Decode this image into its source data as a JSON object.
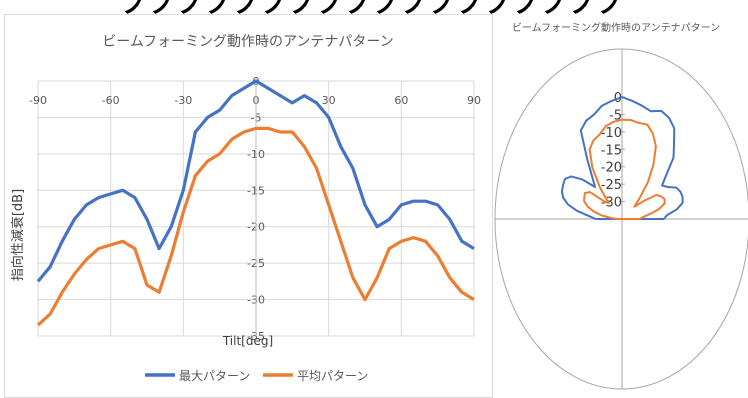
{
  "banner": "ノノノノノノノノノノノノノノノノノノ",
  "chart_data": [
    {
      "type": "line",
      "title": "ビームフォーミング動作時のアンテナパターン",
      "xlabel": "Tilt[deg]",
      "ylabel": "指向性減衰[dB]",
      "xlim": [
        -90,
        90
      ],
      "ylim": [
        -35,
        0
      ],
      "xticks": [
        -90,
        -60,
        -30,
        0,
        30,
        60,
        90
      ],
      "xtick_labels": [
        "-90",
        "-60",
        "-30",
        "0",
        "30",
        "60",
        "90"
      ],
      "yticks": [
        0,
        -5,
        -10,
        -15,
        -20,
        -25,
        -30,
        -35
      ],
      "ytick_labels": [
        "0",
        "-5",
        "-10",
        "-15",
        "-20",
        "-25",
        "-30",
        "-35"
      ],
      "grid": true,
      "legend": "bottom",
      "x": [
        -90,
        -85,
        -80,
        -75,
        -70,
        -65,
        -60,
        -55,
        -50,
        -45,
        -40,
        -35,
        -30,
        -25,
        -20,
        -15,
        -10,
        -5,
        0,
        5,
        10,
        15,
        20,
        25,
        30,
        35,
        40,
        45,
        50,
        55,
        60,
        65,
        70,
        75,
        80,
        85,
        90
      ],
      "series": [
        {
          "name": "最大パターン",
          "color": "#4472c4",
          "values": [
            -27.5,
            -25.5,
            -22,
            -19,
            -17,
            -16,
            -15.5,
            -15,
            -16,
            -19,
            -23,
            -20,
            -15,
            -7,
            -5,
            -4,
            -2,
            -1,
            0,
            -1,
            -2,
            -3,
            -2,
            -3,
            -5,
            -9,
            -12,
            -17,
            -20,
            -19,
            -17,
            -16.5,
            -16.5,
            -17,
            -19,
            -22,
            -23
          ]
        },
        {
          "name": "平均パターン",
          "color": "#ed7d31",
          "values": [
            -33.5,
            -32,
            -29,
            -26.5,
            -24.5,
            -23,
            -22.5,
            -22,
            -23,
            -28,
            -29,
            -24,
            -18,
            -13,
            -11,
            -10,
            -8,
            -7,
            -6.5,
            -6.5,
            -7,
            -7,
            -9,
            -12,
            -17,
            -22,
            -27,
            -30,
            -27,
            -23,
            -22,
            -21.5,
            -22,
            -24,
            -27,
            -29,
            -30
          ]
        }
      ]
    },
    {
      "type": "polar",
      "title": "ビームフォーミング動作時のアンテナパターン",
      "rticks": [
        0,
        -5,
        -10,
        -15,
        -20,
        -25,
        -30
      ],
      "rtick_labels": [
        "0",
        "-5",
        "-10",
        "-15",
        "-20",
        "-25",
        "-30"
      ],
      "rlim": [
        -35,
        0
      ],
      "angles": [
        -90,
        -85,
        -80,
        -75,
        -70,
        -65,
        -60,
        -55,
        -50,
        -45,
        -40,
        -35,
        -30,
        -25,
        -20,
        -15,
        -10,
        -5,
        0,
        5,
        10,
        15,
        20,
        25,
        30,
        35,
        40,
        45,
        50,
        55,
        60,
        65,
        70,
        75,
        80,
        85,
        90
      ],
      "series": [
        {
          "name": "最大パターン",
          "color": "#4472c4",
          "values": [
            -27.5,
            -25.5,
            -22,
            -19,
            -17,
            -16,
            -15.5,
            -15,
            -16,
            -19,
            -23,
            -20,
            -15,
            -7,
            -5,
            -4,
            -2,
            -1,
            0,
            -1,
            -2,
            -3,
            -2,
            -3,
            -5,
            -9,
            -12,
            -17,
            -20,
            -19,
            -17,
            -16.5,
            -16.5,
            -17,
            -19,
            -22,
            -23
          ]
        },
        {
          "name": "平均パターン",
          "color": "#ed7d31",
          "values": [
            -33.5,
            -32,
            -29,
            -26.5,
            -24.5,
            -23,
            -22.5,
            -22,
            -23,
            -28,
            -29,
            -24,
            -18,
            -13,
            -11,
            -10,
            -8,
            -7,
            -6.5,
            -6.5,
            -7,
            -7,
            -9,
            -12,
            -17,
            -22,
            -27,
            -30,
            -27,
            -23,
            -22,
            -21.5,
            -22,
            -24,
            -27,
            -29,
            -30
          ]
        }
      ]
    }
  ]
}
